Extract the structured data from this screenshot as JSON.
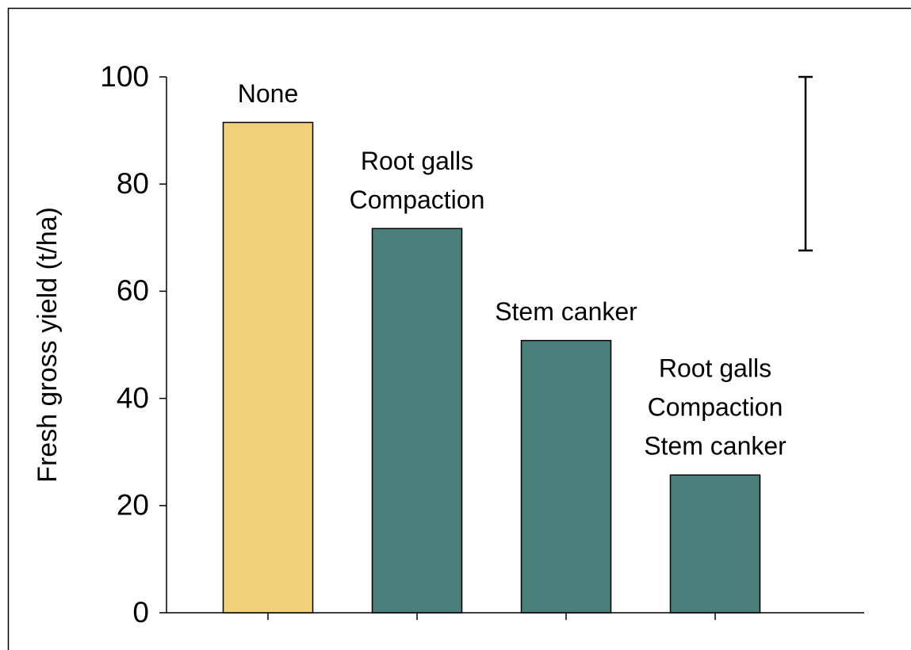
{
  "chart_data": {
    "type": "bar",
    "y_label": "Fresh gross yield (t/ha)",
    "categories": [
      [
        "None"
      ],
      [
        "Root galls",
        "Compaction"
      ],
      [
        "Stem canker"
      ],
      [
        "Root galls",
        "Compaction",
        "Stem canker"
      ]
    ],
    "values": [
      91.5,
      71.7,
      50.8,
      25.7
    ],
    "colors": [
      "#f1d27b",
      "#4a7f7b",
      "#4a7f7b",
      "#4a7f7b"
    ],
    "ylim": [
      0,
      100
    ],
    "yticks": [
      0,
      20,
      40,
      60,
      80,
      100
    ],
    "error_bar": [
      67.6,
      100
    ]
  }
}
